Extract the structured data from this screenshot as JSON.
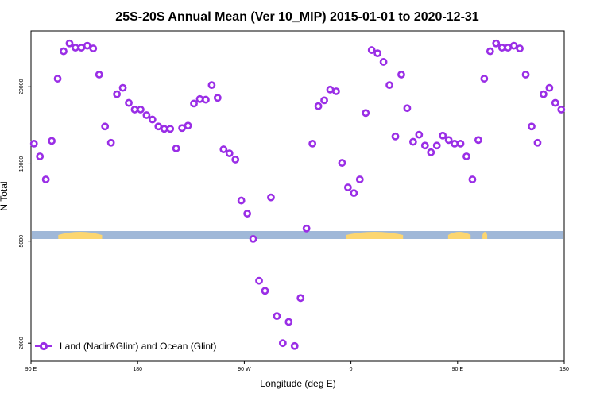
{
  "chart_data": {
    "type": "scatter",
    "title": "25S-20S Annual Mean (Ver 10_MIP)   2015-01-01 to 2020-12-31",
    "xlabel": "Longitude (deg E)",
    "ylabel": "N Total",
    "x_ticks": [
      {
        "value": 90,
        "label": "90 E"
      },
      {
        "value": 180,
        "label": "180"
      },
      {
        "value": 270,
        "label": "90 W"
      },
      {
        "value": 360,
        "label": "0"
      },
      {
        "value": 450,
        "label": "90 E"
      },
      {
        "value": 540,
        "label": "180"
      }
    ],
    "xlim": [
      90,
      540
    ],
    "y_scale": "log",
    "y_ticks": [
      {
        "value": 2000,
        "label": "2000"
      },
      {
        "value": 5000,
        "label": "5000"
      },
      {
        "value": 10000,
        "label": "10000"
      },
      {
        "value": 20000,
        "label": "20000"
      }
    ],
    "ylim": [
      1700,
      33000
    ],
    "grid": false,
    "legend_position": "bottom-left",
    "land_strip": {
      "land_color": "#fcd670",
      "ocean_color": "#a0b8d8",
      "land_ranges": [
        [
          113,
          150
        ],
        [
          356,
          404
        ],
        [
          442,
          461
        ],
        [
          471,
          475
        ],
        [
          560,
          625
        ]
      ]
    },
    "series": [
      {
        "name": "Land (Nadir&Glint) and Ocean (Glint)",
        "color": "#9a2ee6",
        "points": [
          [
            92.5,
            12000
          ],
          [
            97.5,
            10700
          ],
          [
            102.5,
            8700
          ],
          [
            107.5,
            12300
          ],
          [
            112.5,
            21500
          ],
          [
            117.5,
            27500
          ],
          [
            122.5,
            29500
          ],
          [
            127.5,
            28400
          ],
          [
            132.5,
            28400
          ],
          [
            137.5,
            28900
          ],
          [
            142.5,
            28200
          ],
          [
            147.5,
            22300
          ],
          [
            152.5,
            14000
          ],
          [
            157.5,
            12100
          ],
          [
            162.5,
            18700
          ],
          [
            167.5,
            19800
          ],
          [
            172.5,
            17300
          ],
          [
            177.5,
            16300
          ],
          [
            182.5,
            16300
          ],
          [
            187.5,
            15500
          ],
          [
            192.5,
            14900
          ],
          [
            197.5,
            14000
          ],
          [
            202.5,
            13700
          ],
          [
            207.5,
            13700
          ],
          [
            212.5,
            11500
          ],
          [
            217.5,
            13800
          ],
          [
            222.5,
            14100
          ],
          [
            227.5,
            17200
          ],
          [
            232.5,
            17900
          ],
          [
            237.5,
            17800
          ],
          [
            242.5,
            20300
          ],
          [
            247.5,
            18100
          ],
          [
            252.5,
            11400
          ],
          [
            257.5,
            11000
          ],
          [
            262.5,
            10400
          ],
          [
            267.5,
            7200
          ],
          [
            272.5,
            6400
          ],
          [
            277.5,
            5100
          ],
          [
            282.5,
            3500
          ],
          [
            287.5,
            3200
          ],
          [
            292.5,
            7400
          ],
          [
            297.5,
            2550
          ],
          [
            302.5,
            2000
          ],
          [
            307.5,
            2420
          ],
          [
            312.5,
            1950
          ],
          [
            317.5,
            3000
          ],
          [
            322.5,
            5600
          ],
          [
            327.5,
            12000
          ],
          [
            332.5,
            16800
          ],
          [
            337.5,
            17700
          ],
          [
            342.5,
            19500
          ],
          [
            347.5,
            19200
          ],
          [
            352.5,
            10100
          ],
          [
            357.5,
            8100
          ],
          [
            362.5,
            7700
          ],
          [
            367.5,
            8700
          ],
          [
            372.5,
            15800
          ],
          [
            377.5,
            27800
          ],
          [
            382.5,
            27000
          ],
          [
            387.5,
            25000
          ],
          [
            392.5,
            20300
          ],
          [
            397.5,
            12800
          ],
          [
            402.5,
            22300
          ],
          [
            407.5,
            16500
          ],
          [
            412.5,
            12200
          ],
          [
            417.5,
            13000
          ],
          [
            422.5,
            11800
          ],
          [
            427.5,
            11100
          ],
          [
            432.5,
            11800
          ],
          [
            437.5,
            12900
          ],
          [
            442.5,
            12400
          ],
          [
            447.5,
            12000
          ],
          [
            452.5,
            12000
          ],
          [
            457.5,
            10700
          ],
          [
            462.5,
            8700
          ],
          [
            467.5,
            12400
          ],
          [
            472.5,
            21500
          ],
          [
            477.5,
            27500
          ],
          [
            482.5,
            29500
          ],
          [
            487.5,
            28400
          ],
          [
            492.5,
            28400
          ],
          [
            497.5,
            28900
          ],
          [
            502.5,
            28200
          ],
          [
            507.5,
            22300
          ],
          [
            512.5,
            14000
          ],
          [
            517.5,
            12100
          ],
          [
            522.5,
            18700
          ],
          [
            527.5,
            19800
          ],
          [
            532.5,
            17300
          ],
          [
            537.5,
            16300
          ]
        ]
      }
    ]
  }
}
